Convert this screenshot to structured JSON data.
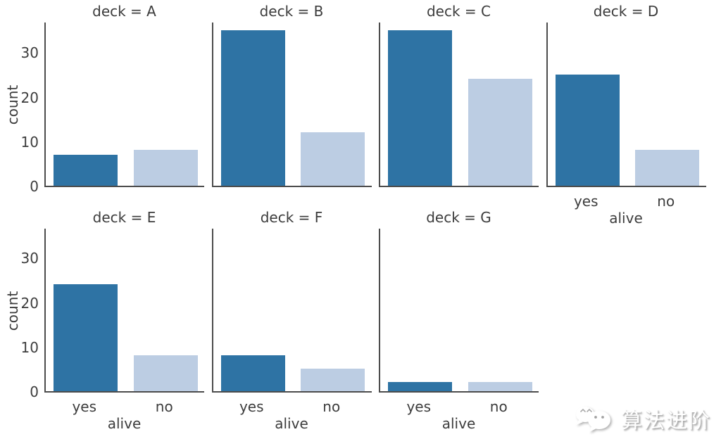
{
  "chart_data": {
    "type": "bar",
    "facet_variable": "deck",
    "xlabel": "alive",
    "ylabel": "count",
    "categories": [
      "yes",
      "no"
    ],
    "yticks": [
      0,
      10,
      20,
      30
    ],
    "ylim": [
      0,
      37
    ],
    "grid": false,
    "legend": "none",
    "rows": [
      [
        "A",
        "B",
        "C",
        "D"
      ],
      [
        "E",
        "F",
        "G"
      ]
    ],
    "facets": [
      {
        "id": "A",
        "title": "deck = A",
        "values": [
          7,
          8
        ]
      },
      {
        "id": "B",
        "title": "deck = B",
        "values": [
          35,
          12
        ]
      },
      {
        "id": "C",
        "title": "deck = C",
        "values": [
          35,
          24
        ]
      },
      {
        "id": "D",
        "title": "deck = D",
        "values": [
          25,
          8
        ]
      },
      {
        "id": "E",
        "title": "deck = E",
        "values": [
          24,
          8
        ]
      },
      {
        "id": "F",
        "title": "deck = F",
        "values": [
          8,
          5
        ]
      },
      {
        "id": "G",
        "title": "deck = G",
        "values": [
          2,
          2
        ]
      }
    ],
    "colors": {
      "yes": "#2e73a4",
      "no": "#bccde3"
    }
  },
  "watermark": {
    "text": "算法进阶",
    "logo": "wechat-chat-bubbles-icon"
  }
}
